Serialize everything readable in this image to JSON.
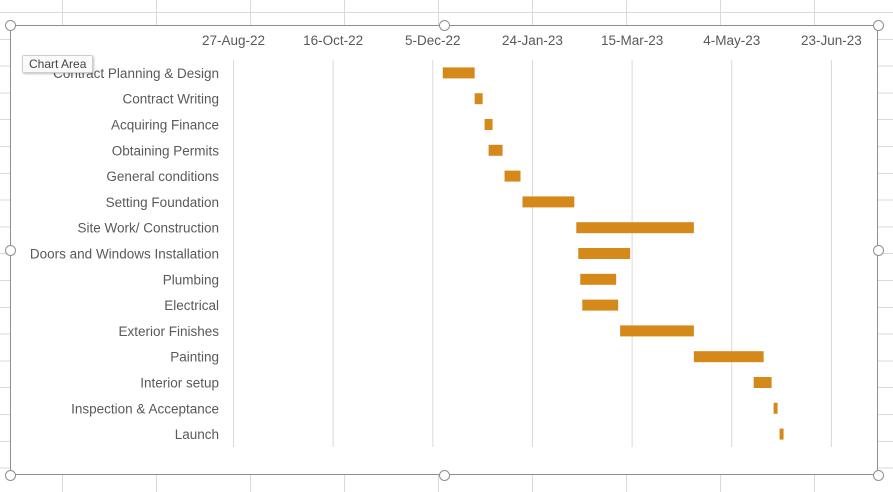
{
  "chart_data": {
    "type": "bar",
    "orientation": "horizontal-gantt",
    "title": "",
    "xlabel": "",
    "ylabel": "",
    "x_axis_position": "top",
    "xlim": [
      "2022-08-27",
      "2023-07-08"
    ],
    "x_tick_labels": [
      "27-Aug-22",
      "16-Oct-22",
      "5-Dec-22",
      "24-Jan-23",
      "15-Mar-23",
      "4-May-23",
      "23-Jun-23"
    ],
    "x_tick_dates": [
      "2022-08-27",
      "2022-10-16",
      "2022-12-05",
      "2023-01-24",
      "2023-03-15",
      "2023-05-04",
      "2023-06-23"
    ],
    "grid": "vertical",
    "legend": "none",
    "bar_color": "#D4891A",
    "categories": [
      "Contract Planning & Design",
      "Contract Writing",
      "Acquiring Finance",
      "Obtaining Permits",
      "General conditions ",
      "Setting Foundation",
      "Site Work/ Construction",
      "Doors and Windows Installation",
      "Plumbing",
      "Electrical",
      "Exterior Finishes",
      "Painting ",
      "Interior setup",
      "Inspection & Acceptance",
      "Launch"
    ],
    "start_dates": [
      "2022-12-10",
      "2022-12-26",
      "2022-12-31",
      "2023-01-02",
      "2023-01-10",
      "2023-01-19",
      "2023-02-15",
      "2023-02-16",
      "2023-02-17",
      "2023-02-18",
      "2023-03-09",
      "2023-04-15",
      "2023-05-15",
      "2023-05-25",
      "2023-05-28"
    ],
    "durations_days": [
      16,
      4,
      4,
      7,
      8,
      26,
      59,
      26,
      18,
      18,
      37,
      35,
      9,
      2,
      2
    ]
  },
  "tooltip": "Chart Area"
}
